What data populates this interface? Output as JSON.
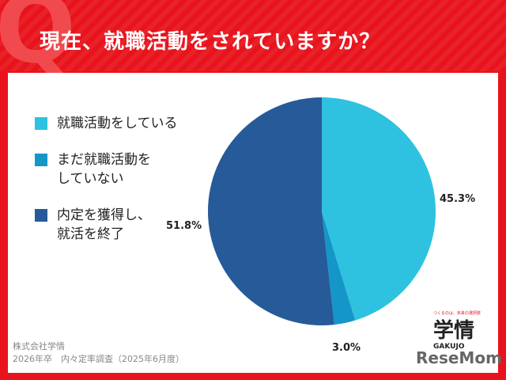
{
  "header": {
    "title": "現在、就職活動をされていますか？",
    "watermark": "Q"
  },
  "chart_data": {
    "type": "pie",
    "start_angle_deg": 0,
    "direction": "clockwise",
    "categories": [
      "就職活動をしている",
      "まだ就職活動を\nしていない",
      "内定を獲得し、\n就活を終了"
    ],
    "values": [
      45.3,
      3.0,
      51.8
    ],
    "unit": "%",
    "data_labels": [
      "45.3%",
      "3.0%",
      "51.8%"
    ],
    "colors": [
      "#2ec2e0",
      "#1496c8",
      "#275a99"
    ],
    "legend_position": "left"
  },
  "source": {
    "line1": "株式会社学情",
    "line2": "2026年卒　内々定率調査（2025年6月度）"
  },
  "logo": {
    "tagline": "つくるのは、未来の選択肢",
    "name": "学情",
    "sub": "GAKUJO"
  },
  "watermark_logo": "ReseMom"
}
